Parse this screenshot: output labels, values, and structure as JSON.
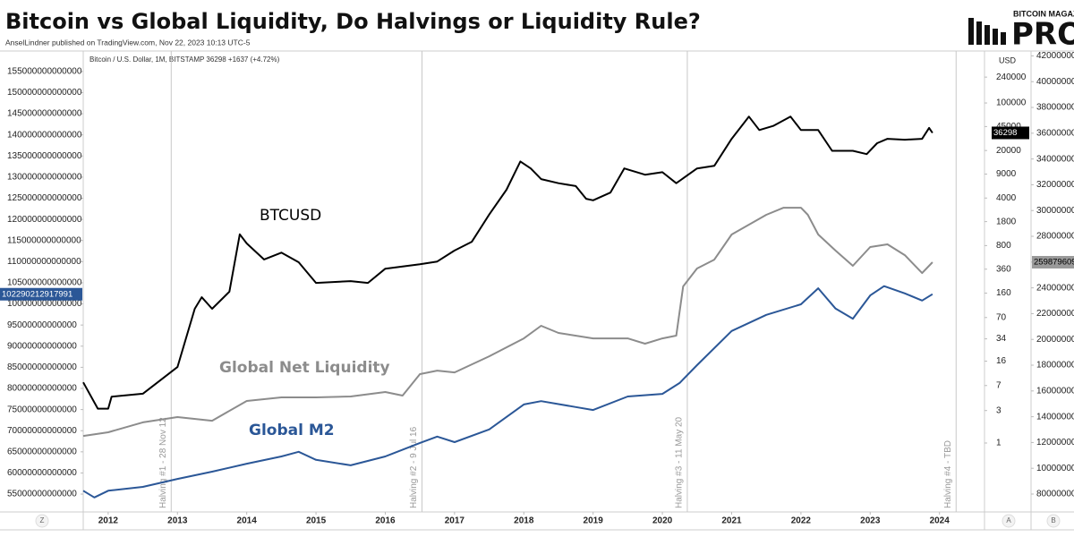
{
  "header": {
    "title": "Bitcoin vs Global Liquidity, Do Halvings or Liquidity Rule?",
    "subtitle": "AnselLindner published on TradingView.com, Nov 22, 2023 10:13 UTC-5",
    "logo_top": "BITCOIN MAGAZINE",
    "logo_main": "PRO"
  },
  "chart_data": {
    "type": "line",
    "symbol_info": "Bitcoin / U.S. Dollar, 1M, BITSTAMP",
    "change_text": "+1637 (+4.72%)",
    "y2_unit": "USD",
    "axis_buttons": [
      "Z",
      "A",
      "B"
    ],
    "xlim": [
      2011.64,
      2024.65
    ],
    "xticks": [
      2012,
      2013,
      2014,
      2015,
      2016,
      2017,
      2018,
      2019,
      2020,
      2021,
      2022,
      2023,
      2024
    ],
    "ylim": [
      51200000000000,
      159200000000000
    ],
    "yticks": [
      55000000000000,
      60000000000000,
      65000000000000,
      70000000000000,
      75000000000000,
      80000000000000,
      85000000000000,
      90000000000000,
      95000000000000,
      100000000000000,
      105000000000000,
      110000000000000,
      115000000000000,
      120000000000000,
      125000000000000,
      130000000000000,
      135000000000000,
      140000000000000,
      145000000000000,
      150000000000000,
      155000000000000
    ],
    "y2lim": [
      0.103,
      530000
    ],
    "y2_log": true,
    "y2ticks": [
      1,
      3,
      7,
      16,
      34,
      70,
      160,
      360,
      800,
      1800,
      4000,
      9000,
      20000,
      45000,
      100000,
      240000
    ],
    "y3lim": [
      675000000000,
      4217000000000
    ],
    "y3ticks": [
      800000000000,
      1000000000000,
      1200000000000,
      1400000000000,
      1600000000000,
      1800000000000,
      2000000000000,
      2200000000000,
      2400000000000,
      2600000000000,
      2800000000000,
      3000000000000,
      3200000000000,
      3400000000000,
      3600000000000,
      3800000000000,
      4000000000000,
      4200000000000
    ],
    "halvings": [
      {
        "x": 2012.91,
        "label": "Halving #1 - 28 Nov 12"
      },
      {
        "x": 2016.53,
        "label": "Halving #2 - 9 Jul 16"
      },
      {
        "x": 2020.36,
        "label": "Halving #3 - 11 May 20"
      },
      {
        "x": 2024.24,
        "label": "Halving #4 - TBD"
      }
    ],
    "series": [
      {
        "name": "BTCUSD",
        "color": "#000000",
        "axis": "y2",
        "x": [
          2011.64,
          2011.85,
          2012.0,
          2012.05,
          2012.5,
          2012.75,
          2013.0,
          2013.25,
          2013.35,
          2013.5,
          2013.75,
          2013.9,
          2014.0,
          2014.25,
          2014.5,
          2014.75,
          2015.0,
          2015.5,
          2015.75,
          2016.0,
          2016.5,
          2016.75,
          2017.0,
          2017.25,
          2017.5,
          2017.75,
          2017.95,
          2018.1,
          2018.25,
          2018.5,
          2018.75,
          2018.9,
          2019.0,
          2019.25,
          2019.45,
          2019.75,
          2020.0,
          2020.2,
          2020.5,
          2020.75,
          2021.0,
          2021.25,
          2021.4,
          2021.6,
          2021.85,
          2022.0,
          2022.25,
          2022.45,
          2022.75,
          2022.95,
          2023.1,
          2023.25,
          2023.5,
          2023.75,
          2023.85,
          2023.9
        ],
        "values": [
          7.8,
          3.2,
          3.2,
          4.8,
          5.3,
          8.3,
          13.1,
          94,
          139,
          94,
          168,
          1170,
          860,
          500,
          630,
          455,
          226,
          240,
          226,
          366,
          426,
          466,
          677,
          910,
          2290,
          5300,
          13800,
          10900,
          7600,
          6600,
          6000,
          3900,
          3700,
          4800,
          10900,
          8800,
          9600,
          6600,
          10900,
          11900,
          29700,
          63000,
          40000,
          46000,
          63000,
          40000,
          40000,
          19800,
          19800,
          17700,
          25600,
          29700,
          28800,
          29700,
          43000,
          36298
        ]
      },
      {
        "name": "Global Net Liquidity",
        "color": "#8c8c8c",
        "axis": "y3",
        "x": [
          2011.64,
          2012.0,
          2012.5,
          2013.0,
          2013.5,
          2014.0,
          2014.5,
          2015.0,
          2015.5,
          2016.0,
          2016.25,
          2016.5,
          2016.75,
          2017.0,
          2017.5,
          2018.0,
          2018.25,
          2018.5,
          2019.0,
          2019.5,
          2019.75,
          2020.0,
          2020.2,
          2020.3,
          2020.5,
          2020.75,
          2021.0,
          2021.5,
          2021.75,
          2022.0,
          2022.1,
          2022.25,
          2022.5,
          2022.75,
          2023.0,
          2023.25,
          2023.5,
          2023.75,
          2023.9
        ],
        "values": [
          1251000000000,
          1279000000000,
          1356000000000,
          1397000000000,
          1369000000000,
          1522000000000,
          1550000000000,
          1550000000000,
          1557000000000,
          1592000000000,
          1564000000000,
          1731000000000,
          1758000000000,
          1744000000000,
          1869000000000,
          2008000000000,
          2106000000000,
          2050000000000,
          2008000000000,
          2008000000000,
          1967000000000,
          2008000000000,
          2029000000000,
          2411000000000,
          2550000000000,
          2619000000000,
          2814000000000,
          2967000000000,
          3022000000000,
          3022000000000,
          2967000000000,
          2814000000000,
          2689000000000,
          2571000000000,
          2717000000000,
          2738000000000,
          2654000000000,
          2515000000000,
          2598796090000
        ]
      },
      {
        "name": "Global M2",
        "color": "#2b5797",
        "axis": "y",
        "x": [
          2011.64,
          2011.8,
          2012.0,
          2012.5,
          2013.0,
          2013.5,
          2014.0,
          2014.5,
          2014.75,
          2015.0,
          2015.5,
          2016.0,
          2016.5,
          2016.75,
          2017.0,
          2017.5,
          2018.0,
          2018.25,
          2018.75,
          2019.0,
          2019.5,
          2020.0,
          2020.25,
          2020.5,
          2021.0,
          2021.5,
          2022.0,
          2022.25,
          2022.5,
          2022.75,
          2023.0,
          2023.2,
          2023.5,
          2023.75,
          2023.9
        ],
        "values": [
          55800000000000,
          54200000000000,
          55800000000000,
          56700000000000,
          58600000000000,
          60300000000000,
          62200000000000,
          63900000000000,
          65000000000000,
          63100000000000,
          61800000000000,
          63900000000000,
          67100000000000,
          68600000000000,
          67300000000000,
          70300000000000,
          76200000000000,
          77000000000000,
          75600000000000,
          74900000000000,
          78100000000000,
          78700000000000,
          81300000000000,
          85500000000000,
          93600000000000,
          97400000000000,
          99900000000000,
          103700000000000,
          98900000000000,
          96500000000000,
          102000000000000,
          104200000000000,
          102500000000000,
          100800000000000,
          102290212917991
        ]
      }
    ]
  }
}
